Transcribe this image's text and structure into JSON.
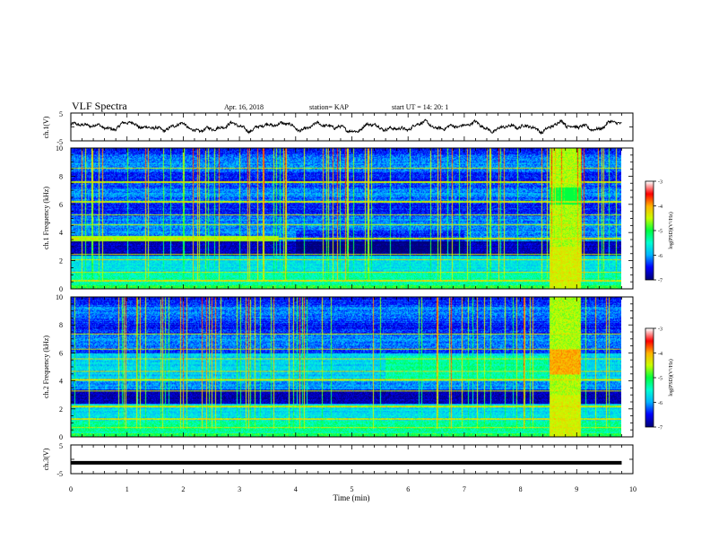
{
  "header": {
    "title": "VLF Spectra",
    "date": "Apr. 16, 2018",
    "station": "station= KAP",
    "start": "start  UT =   14: 20: 1"
  },
  "colors": {
    "colormap": [
      "#00007a",
      "#0000ff",
      "#00b4ff",
      "#00ffd2",
      "#00ff40",
      "#c8ff00",
      "#ffb400",
      "#ff0000",
      "#ffffff"
    ],
    "trace": "#000000"
  },
  "colorbar": {
    "label": "log(PSD)(V²/Hz)",
    "ticks": [
      -3,
      -4,
      -5,
      -6,
      -7
    ],
    "range": [
      -7,
      -3
    ]
  },
  "chart_data": [
    {
      "id": "ch1-waveform",
      "type": "line",
      "ylabel": "ch.1(V)",
      "xlim": [
        0,
        10
      ],
      "ylim": [
        -5,
        5
      ],
      "yticks": [
        5,
        -5
      ],
      "x_end": 9.8,
      "description_level": 0
    },
    {
      "id": "ch1-spectrogram",
      "type": "heatmap",
      "ylabel": "ch.1 Frequency  (kHz)",
      "xlim": [
        0,
        10
      ],
      "ylim": [
        0,
        10
      ],
      "yticks": [
        0,
        2,
        4,
        6,
        8,
        10
      ],
      "x_end": 9.8,
      "value_range": [
        -7,
        -3
      ],
      "event_interval_min": [
        8.52,
        9.08
      ]
    },
    {
      "id": "ch2-spectrogram",
      "type": "heatmap",
      "ylabel": "ch.2 Frequency  (kHz)",
      "xlim": [
        0,
        10
      ],
      "ylim": [
        0,
        10
      ],
      "yticks": [
        0,
        2,
        4,
        6,
        8,
        10
      ],
      "x_end": 9.8,
      "value_range": [
        -7,
        -3
      ],
      "event_interval_min": [
        8.52,
        9.08
      ]
    },
    {
      "id": "ch3-waveform",
      "type": "line",
      "ylabel": "ch.3(V)",
      "xlim": [
        0,
        10
      ],
      "ylim": [
        -5,
        5
      ],
      "yticks": [
        5,
        -5
      ],
      "x_end": 9.8,
      "level": -1.2,
      "xlabel": "Time  (min)",
      "xticks": [
        0,
        1,
        2,
        3,
        4,
        5,
        6,
        7,
        8,
        9,
        10
      ]
    }
  ]
}
